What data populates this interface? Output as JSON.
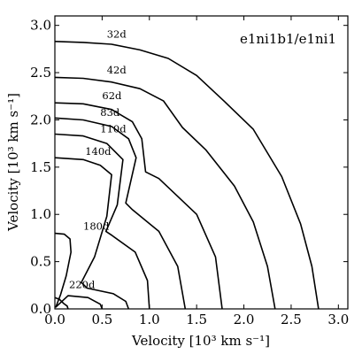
{
  "chart_data": {
    "type": "line",
    "annotation": "e1ni1b1/e1ni1",
    "xlabel": "Velocity [10³ km s⁻¹]",
    "ylabel": "Velocity [10³ km s⁻¹]",
    "xlim": [
      0,
      3.1
    ],
    "ylim": [
      0,
      3.1
    ],
    "xticks": [
      "0.0",
      "0.5",
      "1.0",
      "1.5",
      "2.0",
      "2.5",
      "3.0"
    ],
    "yticks": [
      "0.0",
      "0.5",
      "1.0",
      "1.5",
      "2.0",
      "2.5",
      "3.0"
    ],
    "grid": false,
    "series": [
      {
        "name": "32d",
        "label_at": [
          0.55,
          2.87
        ],
        "x": [
          0,
          0.3,
          0.6,
          0.9,
          1.2,
          1.5,
          1.8,
          2.1,
          2.4,
          2.6,
          2.72,
          2.79
        ],
        "y": [
          2.83,
          2.82,
          2.8,
          2.74,
          2.65,
          2.47,
          2.19,
          1.9,
          1.4,
          0.9,
          0.45,
          0
        ]
      },
      {
        "name": "42d",
        "label_at": [
          0.55,
          2.49
        ],
        "x": [
          0,
          0.3,
          0.6,
          0.9,
          1.15,
          1.35,
          1.6,
          1.9,
          2.1,
          2.25,
          2.33
        ],
        "y": [
          2.45,
          2.44,
          2.4,
          2.33,
          2.2,
          1.92,
          1.68,
          1.3,
          0.92,
          0.45,
          0
        ]
      },
      {
        "name": "62d",
        "label_at": [
          0.5,
          2.22
        ],
        "x": [
          0,
          0.3,
          0.6,
          0.82,
          0.92,
          0.96,
          1.1,
          1.5,
          1.7,
          1.77
        ],
        "y": [
          2.18,
          2.17,
          2.11,
          1.98,
          1.8,
          1.45,
          1.38,
          1.0,
          0.55,
          0
        ]
      },
      {
        "name": "83d",
        "label_at": [
          0.48,
          2.04
        ],
        "x": [
          0,
          0.3,
          0.6,
          0.78,
          0.86,
          0.75,
          0.82,
          1.1,
          1.3,
          1.38
        ],
        "y": [
          2.02,
          2.0,
          1.93,
          1.8,
          1.6,
          1.12,
          1.05,
          0.82,
          0.45,
          0
        ]
      },
      {
        "name": "110d",
        "label_at": [
          0.48,
          1.87
        ],
        "x": [
          0,
          0.3,
          0.55,
          0.72,
          0.66,
          0.54,
          0.6,
          0.85,
          0.98,
          1.0
        ],
        "y": [
          1.85,
          1.83,
          1.75,
          1.58,
          1.1,
          0.82,
          0.78,
          0.6,
          0.3,
          0
        ]
      },
      {
        "name": "140d",
        "label_at": [
          0.32,
          1.63
        ],
        "x": [
          0,
          0.3,
          0.48,
          0.6,
          0.55,
          0.42,
          0.28,
          0.34,
          0.62,
          0.75,
          0.78
        ],
        "y": [
          1.6,
          1.58,
          1.52,
          1.42,
          0.98,
          0.55,
          0.28,
          0.22,
          0.16,
          0.08,
          0
        ]
      },
      {
        "name": "180d",
        "label_at": [
          0.3,
          0.84
        ],
        "x": [
          0,
          0.1,
          0.16,
          0.17,
          0.12,
          0.06,
          0.01,
          0.14,
          0.35,
          0.48,
          0.5
        ],
        "y": [
          0.8,
          0.79,
          0.74,
          0.6,
          0.35,
          0.15,
          0.02,
          0.14,
          0.12,
          0.05,
          0
        ]
      },
      {
        "name": "220d",
        "label_at": [
          0.15,
          0.22
        ],
        "x": [
          0,
          0.05,
          0.09,
          0.13,
          0.14
        ],
        "y": [
          0.12,
          0.1,
          0.06,
          0.03,
          0
        ]
      }
    ]
  }
}
